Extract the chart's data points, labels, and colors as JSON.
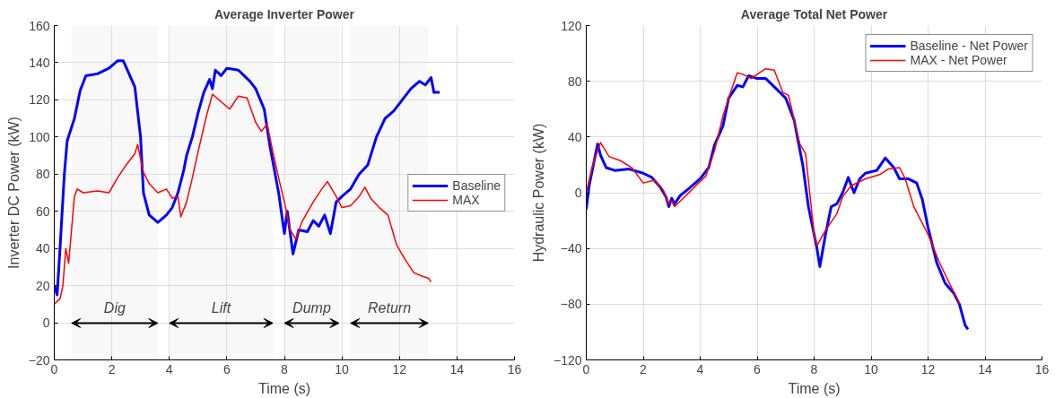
{
  "chart_data": [
    {
      "type": "line",
      "title": "Average Inverter Power",
      "xlabel": "Time (s)",
      "ylabel": "Inverter DC Power (kW)",
      "xlim": [
        0,
        16
      ],
      "xticks": [
        0,
        2,
        4,
        6,
        8,
        10,
        12,
        14,
        16
      ],
      "ylim": [
        -20,
        160
      ],
      "yticks": [
        -20,
        0,
        20,
        40,
        60,
        80,
        100,
        120,
        140,
        160
      ],
      "grid": true,
      "legend": "right",
      "series": [
        {
          "name": "Baseline",
          "color": "#0000ff",
          "x": [
            0,
            0.1,
            0.2,
            0.35,
            0.45,
            0.7,
            0.9,
            1.1,
            1.5,
            1.9,
            2.2,
            2.4,
            2.6,
            2.8,
            3.0,
            3.1,
            3.3,
            3.6,
            3.9,
            4.1,
            4.3,
            4.5,
            4.6,
            4.8,
            5.0,
            5.2,
            5.4,
            5.5,
            5.6,
            5.8,
            6.0,
            6.4,
            6.6,
            6.8,
            7.0,
            7.3,
            7.5,
            7.8,
            8.0,
            8.1,
            8.3,
            8.5,
            8.8,
            9.0,
            9.2,
            9.4,
            9.6,
            9.8,
            10.0,
            10.3,
            10.6,
            10.9,
            11.2,
            11.5,
            11.8,
            12.1,
            12.4,
            12.7,
            12.9,
            13.1,
            13.2,
            13.4
          ],
          "values": [
            20,
            15,
            40,
            80,
            98,
            110,
            125,
            133,
            134,
            137,
            141,
            141,
            134,
            127,
            100,
            70,
            58,
            54,
            58,
            62,
            70,
            82,
            90,
            100,
            113,
            124,
            131,
            126,
            136,
            133,
            137,
            136,
            133,
            130,
            126,
            115,
            95,
            70,
            48,
            60,
            37,
            50,
            49,
            55,
            52,
            58,
            48,
            65,
            68,
            72,
            80,
            85,
            100,
            110,
            114,
            120,
            126,
            130,
            128,
            132,
            124,
            124
          ]
        },
        {
          "name": "MAX",
          "color": "#ff0000",
          "x": [
            0,
            0.2,
            0.3,
            0.4,
            0.5,
            0.6,
            0.7,
            0.8,
            1.0,
            1.5,
            1.9,
            2.2,
            2.5,
            2.8,
            2.9,
            3.0,
            3.1,
            3.3,
            3.6,
            3.9,
            4.1,
            4.3,
            4.4,
            4.6,
            4.8,
            5.0,
            5.3,
            5.5,
            5.8,
            6.1,
            6.4,
            6.7,
            7.0,
            7.2,
            7.4,
            7.6,
            7.8,
            8.0,
            8.2,
            8.4,
            8.6,
            9.0,
            9.3,
            9.5,
            9.8,
            10.0,
            10.3,
            10.6,
            10.8,
            11.0,
            11.3,
            11.6,
            11.9,
            12.2,
            12.5,
            12.8,
            13.0,
            13.1
          ],
          "values": [
            10,
            13,
            20,
            40,
            32,
            50,
            68,
            72,
            70,
            71,
            70,
            78,
            85,
            91,
            96,
            88,
            81,
            75,
            70,
            72,
            67,
            68,
            57,
            65,
            78,
            92,
            112,
            123,
            119,
            115,
            122,
            121,
            108,
            103,
            107,
            92,
            78,
            65,
            50,
            45,
            54,
            65,
            72,
            76,
            68,
            62,
            63,
            68,
            73,
            67,
            62,
            58,
            42,
            34,
            27,
            25,
            24,
            22
          ]
        }
      ],
      "bands": [
        {
          "axis": "x",
          "from": 0.6,
          "to": 3.6,
          "label": "Dig",
          "color": "#f4f4f4"
        },
        {
          "axis": "x",
          "from": 4.0,
          "to": 7.6,
          "label": "Lift",
          "color": "#f4f4f4"
        },
        {
          "axis": "x",
          "from": 8.0,
          "to": 9.9,
          "label": "Dump",
          "color": "#f4f4f4"
        },
        {
          "axis": "x",
          "from": 10.3,
          "to": 13.0,
          "label": "Return",
          "color": "#f4f4f4"
        }
      ]
    },
    {
      "type": "line",
      "title": "Average Total Net Power",
      "xlabel": "Time (s)",
      "ylabel": "Hydraulic Power (kW)",
      "xlim": [
        0,
        16
      ],
      "xticks": [
        0,
        2,
        4,
        6,
        8,
        10,
        12,
        14,
        16
      ],
      "ylim": [
        -120,
        120
      ],
      "yticks": [
        -120,
        -80,
        -40,
        0,
        40,
        80,
        120
      ],
      "grid": true,
      "legend": "top right",
      "series": [
        {
          "name": "Baseline - Net Power",
          "color": "#0000ff",
          "x": [
            0,
            0.1,
            0.3,
            0.4,
            0.5,
            0.7,
            1.0,
            1.5,
            2.0,
            2.3,
            2.6,
            2.8,
            2.9,
            3.0,
            3.1,
            3.3,
            3.6,
            4.0,
            4.3,
            4.5,
            4.8,
            5.0,
            5.3,
            5.5,
            5.7,
            6.0,
            6.3,
            6.6,
            7.0,
            7.3,
            7.6,
            7.8,
            8.0,
            8.1,
            8.2,
            8.4,
            8.6,
            8.8,
            9.0,
            9.2,
            9.4,
            9.6,
            9.8,
            10.2,
            10.5,
            10.8,
            11.0,
            11.3,
            11.6,
            11.8,
            12.0,
            12.3,
            12.6,
            12.9,
            13.1,
            13.3,
            13.4
          ],
          "values": [
            -12,
            5,
            25,
            35,
            27,
            18,
            16,
            17,
            14,
            11,
            4,
            -3,
            -10,
            -4,
            -8,
            -2,
            3,
            10,
            18,
            34,
            48,
            68,
            77,
            76,
            84,
            82,
            82,
            76,
            68,
            52,
            20,
            -10,
            -30,
            -40,
            -53,
            -30,
            -10,
            -8,
            0,
            11,
            0,
            10,
            14,
            16,
            25,
            18,
            10,
            10,
            7,
            -5,
            -25,
            -50,
            -65,
            -72,
            -80,
            -95,
            -98
          ]
        },
        {
          "name": "MAX - Net Power",
          "color": "#ff0000",
          "x": [
            0,
            0.2,
            0.5,
            0.8,
            1.2,
            1.6,
            2.0,
            2.4,
            2.7,
            2.9,
            3.0,
            3.1,
            3.5,
            4.0,
            4.2,
            4.5,
            4.8,
            5.0,
            5.3,
            5.5,
            5.8,
            6.0,
            6.3,
            6.6,
            6.9,
            7.1,
            7.5,
            7.7,
            8.0,
            8.1,
            8.4,
            8.8,
            9.0,
            9.3,
            9.8,
            10.3,
            10.6,
            11.0,
            11.2,
            11.5,
            12.0,
            12.4,
            12.7,
            13.0,
            13.1
          ],
          "values": [
            0,
            18,
            36,
            26,
            23,
            18,
            7,
            9,
            2,
            -8,
            -6,
            -10,
            -2,
            8,
            12,
            30,
            55,
            68,
            86,
            85,
            82,
            85,
            89,
            88,
            72,
            70,
            35,
            28,
            -30,
            -38,
            -27,
            -15,
            -3,
            5,
            10,
            13,
            17,
            18,
            10,
            -10,
            -30,
            -50,
            -63,
            -75,
            -80
          ]
        }
      ]
    }
  ]
}
